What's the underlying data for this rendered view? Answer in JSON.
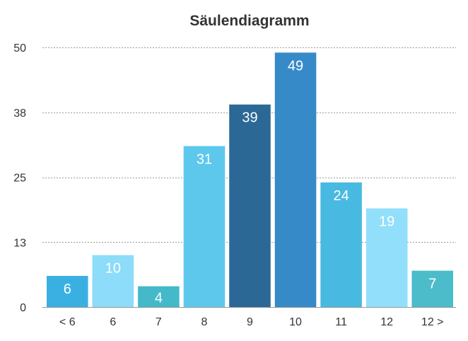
{
  "chart_data": {
    "type": "bar",
    "title": "Säulendiagramm",
    "xlabel": "",
    "ylabel": "",
    "categories": [
      "< 6",
      "6",
      "7",
      "8",
      "9",
      "10",
      "11",
      "12",
      "12 >"
    ],
    "values": [
      6,
      10,
      4,
      31,
      39,
      49,
      24,
      19,
      7
    ],
    "data_labels": [
      "6",
      "10",
      "4",
      "31",
      "39",
      "49",
      "24",
      "19",
      "7"
    ],
    "y_ticks": [
      0,
      12.5,
      25,
      37.5,
      50
    ],
    "y_tick_labels": [
      "0",
      "13",
      "25",
      "38",
      "50"
    ],
    "ylim": [
      0,
      50
    ],
    "grid": true,
    "colors": [
      "#3ab0e2",
      "#8cdcfa",
      "#43b9c9",
      "#5ec8ec",
      "#2b6896",
      "#368ac8",
      "#48b9e1",
      "#92dffb",
      "#4cbccb"
    ]
  }
}
